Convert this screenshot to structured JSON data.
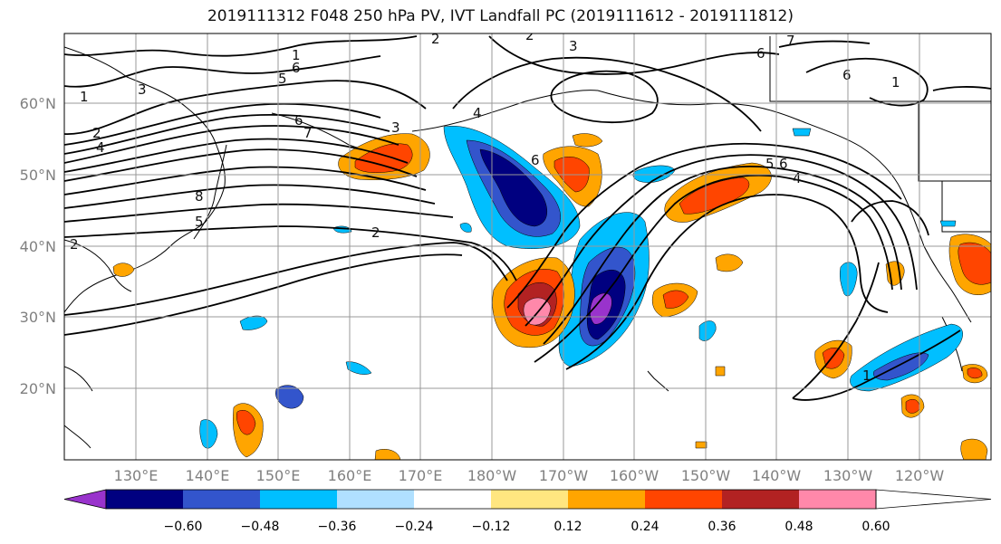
{
  "title": "2019111312 F048 250 hPa PV, IVT Landfall PC (2019111612 - 2019111812)",
  "lat_labels": [
    "60°N",
    "50°N",
    "40°N",
    "30°N",
    "20°N"
  ],
  "lon_labels": [
    "130°E",
    "140°E",
    "150°E",
    "160°E",
    "170°E",
    "180°W",
    "170°W",
    "160°W",
    "150°W",
    "140°W",
    "130°W",
    "120°W"
  ],
  "colorbar": {
    "ticks": [
      "−0.60",
      "−0.48",
      "−0.36",
      "−0.24",
      "−0.12",
      "0.12",
      "0.24",
      "0.36",
      "0.48",
      "0.60"
    ],
    "colors": [
      "#9933cc",
      "#000080",
      "#3355cc",
      "#00bfff",
      "#b0e0ff",
      "#ffffff",
      "#ffe680",
      "#ffa500",
      "#ff4500",
      "#b22222",
      "#ff88aa",
      "#ffffff"
    ]
  },
  "contour_labels": [
    "1",
    "2",
    "3",
    "4",
    "5",
    "6",
    "7",
    "8",
    "2",
    "3",
    "5",
    "6",
    "4",
    "1",
    "6",
    "3",
    "2",
    "7",
    "6",
    "1",
    "5",
    "6",
    "4",
    "6",
    "1",
    "2",
    "2"
  ],
  "colors": {
    "grid": "#999999",
    "contour": "#000000",
    "positive": "#ff4500",
    "negative": "#3355cc"
  }
}
